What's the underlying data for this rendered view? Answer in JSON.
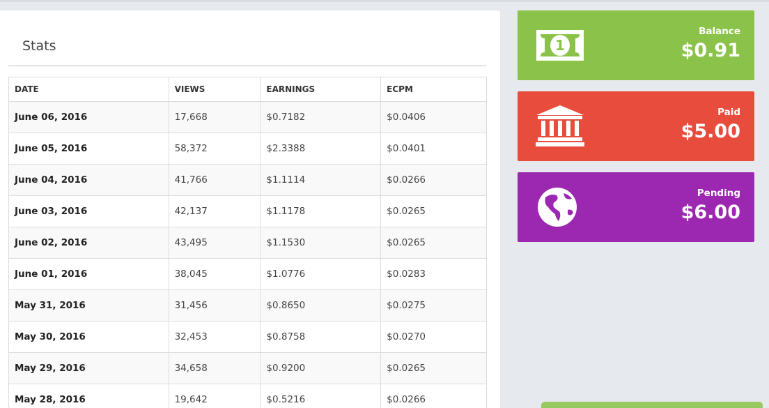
{
  "stats": {
    "title": "Stats",
    "headers": {
      "date": "DATE",
      "views": "VIEWS",
      "earnings": "EARNINGS",
      "ecpm": "ECPM"
    },
    "rows": [
      {
        "date": "June 06, 2016",
        "views": "17,668",
        "earnings": "$0.7182",
        "ecpm": "$0.0406"
      },
      {
        "date": "June 05, 2016",
        "views": "58,372",
        "earnings": "$2.3388",
        "ecpm": "$0.0401"
      },
      {
        "date": "June 04, 2016",
        "views": "41,766",
        "earnings": "$1.1114",
        "ecpm": "$0.0266"
      },
      {
        "date": "June 03, 2016",
        "views": "42,137",
        "earnings": "$1.1178",
        "ecpm": "$0.0265"
      },
      {
        "date": "June 02, 2016",
        "views": "43,495",
        "earnings": "$1.1530",
        "ecpm": "$0.0265"
      },
      {
        "date": "June 01, 2016",
        "views": "38,045",
        "earnings": "$1.0776",
        "ecpm": "$0.0283"
      },
      {
        "date": "May 31, 2016",
        "views": "31,456",
        "earnings": "$0.8650",
        "ecpm": "$0.0275"
      },
      {
        "date": "May 30, 2016",
        "views": "32,453",
        "earnings": "$0.8758",
        "ecpm": "$0.0270"
      },
      {
        "date": "May 29, 2016",
        "views": "34,658",
        "earnings": "$0.9200",
        "ecpm": "$0.0265"
      },
      {
        "date": "May 28, 2016",
        "views": "19,642",
        "earnings": "$0.5216",
        "ecpm": "$0.0266"
      }
    ]
  },
  "cards": {
    "balance": {
      "label": "Balance",
      "amount": "$0.91",
      "icon": "money-bill-icon",
      "color": "#8bc34a",
      "bill_digit": "1"
    },
    "paid": {
      "label": "Paid",
      "amount": "$5.00",
      "icon": "bank-icon",
      "color": "#e84c3d"
    },
    "pending": {
      "label": "Pending",
      "amount": "$6.00",
      "icon": "globe-icon",
      "color": "#9c27b0"
    }
  }
}
